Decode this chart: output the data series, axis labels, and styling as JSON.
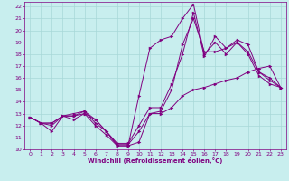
{
  "xlabel": "Windchill (Refroidissement éolien,°C)",
  "xlim": [
    -0.5,
    23.5
  ],
  "ylim": [
    10,
    22.4
  ],
  "xticks": [
    0,
    1,
    2,
    3,
    4,
    5,
    6,
    7,
    8,
    9,
    10,
    11,
    12,
    13,
    14,
    15,
    16,
    17,
    18,
    19,
    20,
    21,
    22,
    23
  ],
  "yticks": [
    10,
    11,
    12,
    13,
    14,
    15,
    16,
    17,
    18,
    19,
    20,
    21,
    22
  ],
  "bg_color": "#c8eeee",
  "line_color": "#800080",
  "grid_color": "#a8d8d8",
  "lines": [
    {
      "x": [
        0,
        1,
        2,
        3,
        4,
        5,
        6,
        7,
        8,
        9,
        10,
        11,
        12,
        13,
        14,
        15,
        16,
        17,
        18,
        19,
        20,
        21,
        22,
        23
      ],
      "y": [
        12.7,
        12.2,
        12.2,
        12.8,
        12.8,
        13.0,
        12.5,
        11.5,
        10.3,
        10.3,
        10.6,
        13.0,
        13.0,
        13.5,
        14.5,
        15.0,
        15.2,
        15.5,
        15.8,
        16.0,
        16.5,
        16.8,
        17.0,
        15.2
      ]
    },
    {
      "x": [
        0,
        1,
        2,
        3,
        4,
        5,
        6,
        7,
        8,
        9,
        10,
        11,
        12,
        13,
        14,
        15,
        16,
        17,
        18,
        19,
        20,
        21,
        22,
        23
      ],
      "y": [
        12.7,
        12.2,
        11.5,
        12.8,
        12.5,
        13.0,
        12.0,
        11.2,
        10.3,
        10.3,
        14.5,
        18.5,
        19.2,
        19.5,
        21.0,
        22.2,
        18.0,
        19.0,
        18.0,
        19.0,
        18.0,
        16.2,
        15.5,
        15.2
      ]
    },
    {
      "x": [
        0,
        1,
        2,
        3,
        4,
        5,
        6,
        7,
        8,
        9,
        10,
        11,
        12,
        13,
        14,
        15,
        16,
        17,
        18,
        19,
        20,
        21,
        22,
        23
      ],
      "y": [
        12.7,
        12.2,
        12.2,
        12.8,
        13.0,
        13.2,
        12.5,
        11.5,
        10.4,
        10.4,
        11.5,
        13.0,
        13.2,
        15.0,
        18.8,
        21.0,
        18.2,
        18.2,
        18.5,
        19.0,
        18.2,
        16.5,
        15.8,
        15.2
      ]
    },
    {
      "x": [
        0,
        1,
        2,
        3,
        4,
        5,
        6,
        7,
        8,
        9,
        10,
        11,
        12,
        13,
        14,
        15,
        16,
        17,
        18,
        19,
        20,
        21,
        22,
        23
      ],
      "y": [
        12.7,
        12.2,
        12.0,
        12.8,
        12.8,
        13.2,
        12.2,
        11.5,
        10.5,
        10.5,
        12.0,
        13.5,
        13.5,
        15.5,
        18.0,
        21.5,
        17.8,
        19.5,
        18.5,
        19.2,
        18.8,
        16.5,
        16.0,
        15.2
      ]
    }
  ]
}
